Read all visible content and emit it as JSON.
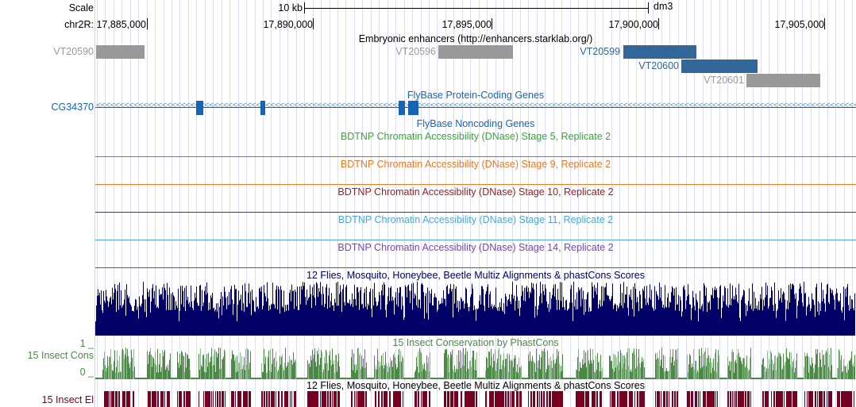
{
  "scale": {
    "label": "Scale",
    "bar_label": "10 kb",
    "assembly": "dm3"
  },
  "ruler": {
    "chrom_label": "chr2R:",
    "ticks": [
      "17,885,000",
      "17,890,000",
      "17,895,000",
      "17,900,000",
      "17,905,000"
    ]
  },
  "enhancers": {
    "title": "Embryonic enhancers (http://enhancers.starklab.org/)",
    "items": [
      {
        "name": "VT20590",
        "color": "#999999"
      },
      {
        "name": "VT20596",
        "color": "#999999"
      },
      {
        "name": "VT20599",
        "color": "#336699"
      },
      {
        "name": "VT20600",
        "color": "#336699"
      },
      {
        "name": "VT20601",
        "color": "#999999"
      }
    ]
  },
  "genes": {
    "title": "FlyBase Protein-Coding Genes",
    "gene_name": "CG34370",
    "noncoding_title": "FlyBase Noncoding Genes",
    "color": "#1465b4"
  },
  "dnase_tracks": [
    {
      "title": "BDTNP Chromatin Accessibility (DNase) Stage 5, Replicate 2",
      "color": "#33aa33"
    },
    {
      "title": "BDTNP Chromatin Accessibility (DNase) Stage 9, Replicate 2",
      "color": "#ee7722"
    },
    {
      "title": "BDTNP Chromatin Accessibility (DNase) Stage 10, Replicate 2",
      "color": "#9b1c1f"
    },
    {
      "title": "BDTNP Chromatin Accessibility (DNase) Stage 11, Replicate 2",
      "color": "#44aadd"
    },
    {
      "title": "BDTNP Chromatin Accessibility (DNase) Stage 14, Replicate 2",
      "color": "#7744bb"
    }
  ],
  "multiz": {
    "title": "12 Flies, Mosquito, Honeybee, Beetle Multiz Alignments & phastCons Scores",
    "color": "#000066"
  },
  "cons": {
    "title": "15 Insect Conservation by PhastCons",
    "left_label": "15 Insect Cons",
    "y_max": "1 _",
    "y_min": "0 _",
    "color": "#4a8a44"
  },
  "elements": {
    "title": "12 Flies, Mosquito, Honeybee, Beetle Multiz Alignments & phastCons Scores",
    "left_label": "15 Insect El",
    "color": "#770022"
  }
}
